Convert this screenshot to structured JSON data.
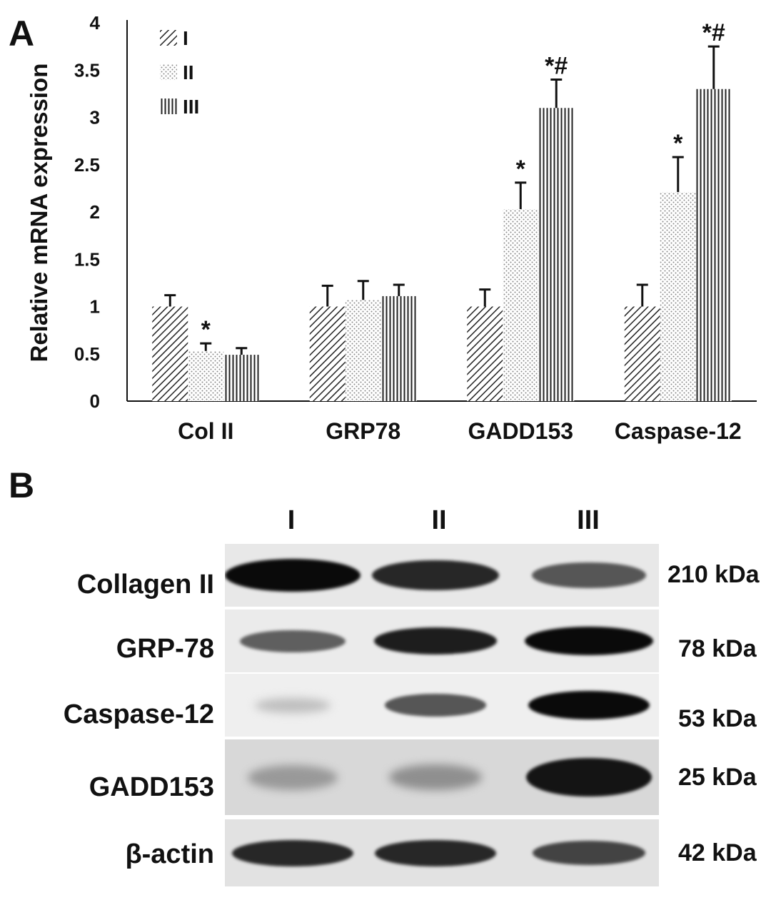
{
  "panel_a": {
    "letter": "A",
    "chart_data": {
      "type": "bar",
      "ylabel": "Relative mRNA expression",
      "xlabel": "",
      "ylim": [
        0,
        4
      ],
      "yticks": [
        "0",
        "0.5",
        "1",
        "1.5",
        "2",
        "2.5",
        "3",
        "3.5",
        "4"
      ],
      "categories": [
        "Col II",
        "GRP78",
        "GADD153",
        "Caspase-12"
      ],
      "legend_position": "top-left",
      "grid": false,
      "series": [
        {
          "name": "I",
          "pattern": "diagonal-hatch",
          "values": [
            1.0,
            1.0,
            1.0,
            1.0
          ],
          "errors": [
            0.12,
            0.22,
            0.18,
            0.23
          ],
          "annotations": [
            "",
            "",
            "",
            ""
          ]
        },
        {
          "name": "II",
          "pattern": "dots",
          "values": [
            0.53,
            1.07,
            2.03,
            2.21
          ],
          "errors": [
            0.08,
            0.2,
            0.28,
            0.37
          ],
          "annotations": [
            "*",
            "",
            "*",
            "*"
          ]
        },
        {
          "name": "III",
          "pattern": "vertical-lines",
          "values": [
            0.49,
            1.11,
            3.1,
            3.3
          ],
          "errors": [
            0.07,
            0.12,
            0.3,
            0.45
          ],
          "annotations": [
            "",
            "",
            "*#",
            "*#"
          ]
        }
      ]
    }
  },
  "panel_b": {
    "letter": "B",
    "lanes": [
      "I",
      "II",
      "III"
    ],
    "rows": [
      {
        "protein": "Collagen II",
        "kda": "210 kDa",
        "intensities": [
          1.0,
          0.85,
          0.6
        ]
      },
      {
        "protein": "GRP-78",
        "kda": "78 kDa",
        "intensities": [
          0.55,
          0.9,
          1.0
        ]
      },
      {
        "protein": "Caspase-12",
        "kda": "53 kDa",
        "intensities": [
          0.05,
          0.6,
          1.0
        ]
      },
      {
        "protein": "GADD153",
        "kda": "25 kDa",
        "intensities": [
          0.25,
          0.3,
          0.95
        ]
      },
      {
        "protein": "β-actin",
        "kda": "42 kDa",
        "intensities": [
          0.85,
          0.85,
          0.7
        ]
      }
    ]
  },
  "colors": {
    "ink": "#111111",
    "background": "#ffffff",
    "blot_background": "#e3e3e3"
  }
}
